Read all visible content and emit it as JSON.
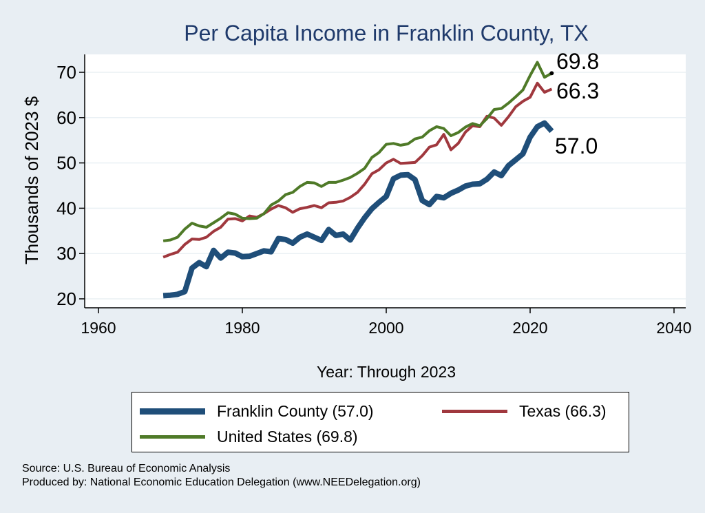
{
  "chart_data": {
    "type": "line",
    "title": "Per Capita Income in Franklin County, TX",
    "xlabel": "Year: Through 2023",
    "ylabel": "Thousands of 2023 $",
    "xlim": [
      1960,
      2040
    ],
    "ylim": [
      18,
      76
    ],
    "x_ticks": [
      1960,
      1980,
      2000,
      2020,
      2040
    ],
    "y_ticks": [
      20,
      30,
      40,
      50,
      60,
      70
    ],
    "grid": true,
    "legend_position": "bottom",
    "end_labels": [
      "69.8",
      "66.3",
      "57.0"
    ],
    "years": [
      1969,
      1970,
      1971,
      1972,
      1973,
      1974,
      1975,
      1976,
      1977,
      1978,
      1979,
      1980,
      1981,
      1982,
      1983,
      1984,
      1985,
      1986,
      1987,
      1988,
      1989,
      1990,
      1991,
      1992,
      1993,
      1994,
      1995,
      1996,
      1997,
      1998,
      1999,
      2000,
      2001,
      2002,
      2003,
      2004,
      2005,
      2006,
      2007,
      2008,
      2009,
      2010,
      2011,
      2012,
      2013,
      2014,
      2015,
      2016,
      2017,
      2018,
      2019,
      2020,
      2021,
      2022,
      2023
    ],
    "series": [
      {
        "name": "Franklin County (57.0)",
        "color": "#1f4e79",
        "width": 8,
        "values": [
          20.7,
          20.8,
          21.0,
          21.6,
          26.8,
          28.0,
          27.1,
          30.7,
          29.0,
          30.3,
          30.1,
          29.3,
          29.4,
          30.0,
          30.6,
          30.4,
          33.3,
          33.1,
          32.3,
          33.6,
          34.3,
          33.6,
          32.9,
          35.3,
          34.0,
          34.3,
          33.0,
          35.6,
          37.9,
          39.9,
          41.3,
          42.6,
          46.5,
          47.3,
          47.4,
          46.3,
          41.7,
          40.8,
          42.6,
          42.3,
          43.3,
          44.0,
          44.9,
          45.3,
          45.4,
          46.4,
          48.0,
          47.2,
          49.4,
          50.7,
          52.0,
          55.7,
          58.0,
          58.8,
          57.0
        ]
      },
      {
        "name": "Texas (66.3)",
        "color": "#a0383e",
        "width": 4,
        "values": [
          29.2,
          29.8,
          30.3,
          32.0,
          33.2,
          33.1,
          33.6,
          34.9,
          35.8,
          37.6,
          37.7,
          37.2,
          38.3,
          38.0,
          38.8,
          39.8,
          40.6,
          40.1,
          39.1,
          39.9,
          40.2,
          40.6,
          40.1,
          41.2,
          41.3,
          41.6,
          42.4,
          43.5,
          45.3,
          47.6,
          48.5,
          50.0,
          50.8,
          49.9,
          50.0,
          50.1,
          51.6,
          53.5,
          54.0,
          56.3,
          52.9,
          54.3,
          56.8,
          58.2,
          58.0,
          60.3,
          59.9,
          58.3,
          60.2,
          62.4,
          63.6,
          64.5,
          67.6,
          65.6,
          66.3
        ]
      },
      {
        "name": "United States (69.8)",
        "color": "#4f7a28",
        "width": 4,
        "values": [
          32.8,
          33.0,
          33.6,
          35.4,
          36.7,
          36.1,
          35.8,
          36.8,
          37.8,
          39.0,
          38.7,
          37.8,
          37.7,
          37.8,
          38.8,
          40.7,
          41.6,
          43.0,
          43.5,
          44.8,
          45.7,
          45.6,
          44.8,
          45.7,
          45.7,
          46.2,
          46.8,
          47.7,
          48.8,
          51.2,
          52.3,
          54.1,
          54.3,
          53.9,
          54.2,
          55.3,
          55.7,
          57.1,
          58.0,
          57.6,
          56.0,
          56.7,
          57.9,
          58.7,
          58.2,
          59.8,
          61.8,
          62.0,
          63.2,
          64.6,
          66.1,
          69.3,
          72.2,
          68.9,
          69.8
        ]
      }
    ]
  },
  "legend": {
    "franklin": "Franklin County (57.0)",
    "texas": "Texas (66.3)",
    "us": "United States (69.8)"
  },
  "footer": {
    "source": "Source: U.S. Bureau of Economic Analysis",
    "produced_by": "Produced by: National Economic Education Delegation (www.NEEDelegation.org)"
  },
  "colors": {
    "background": "#e8eef3",
    "plot_background": "#ffffff",
    "title": "#1f3a6b",
    "franklin": "#1f4e79",
    "texas": "#a0383e",
    "us": "#4f7a28"
  }
}
